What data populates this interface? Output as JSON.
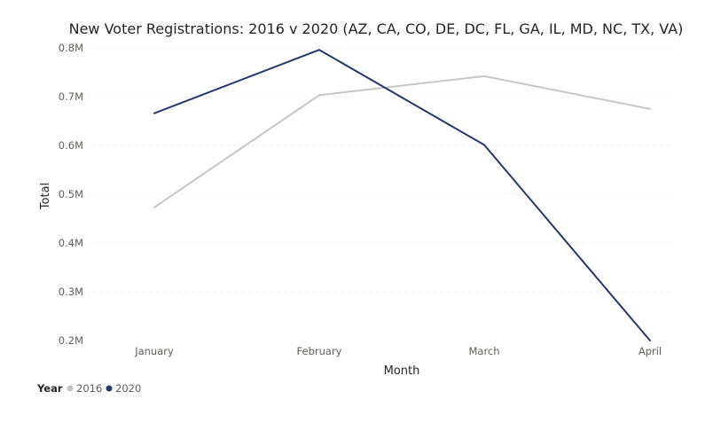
{
  "chart_data": {
    "type": "line",
    "title": "New Voter Registrations: 2016 v 2020 (AZ, CA, CO, DE, DC, FL, GA, IL, MD, NC, TX, VA)",
    "xlabel": "Month",
    "ylabel": "Total",
    "categories": [
      "January",
      "February",
      "March",
      "April"
    ],
    "ylim": [
      200000,
      800000
    ],
    "yticks": [
      {
        "value": 200000,
        "label": "0.2M"
      },
      {
        "value": 300000,
        "label": "0.3M"
      },
      {
        "value": 400000,
        "label": "0.4M"
      },
      {
        "value": 500000,
        "label": "0.5M"
      },
      {
        "value": 600000,
        "label": "0.6M"
      },
      {
        "value": 700000,
        "label": "0.7M"
      },
      {
        "value": 800000,
        "label": "0.8M"
      }
    ],
    "grid": true,
    "legend": {
      "title": "Year",
      "placement": "bottom-left"
    },
    "series": [
      {
        "name": "2016",
        "color": "#c8c6c4",
        "values": [
          473000,
          703000,
          742000,
          675000
        ]
      },
      {
        "name": "2020",
        "color": "#1f3a6e",
        "values": [
          666000,
          796000,
          601000,
          200000
        ]
      }
    ]
  }
}
